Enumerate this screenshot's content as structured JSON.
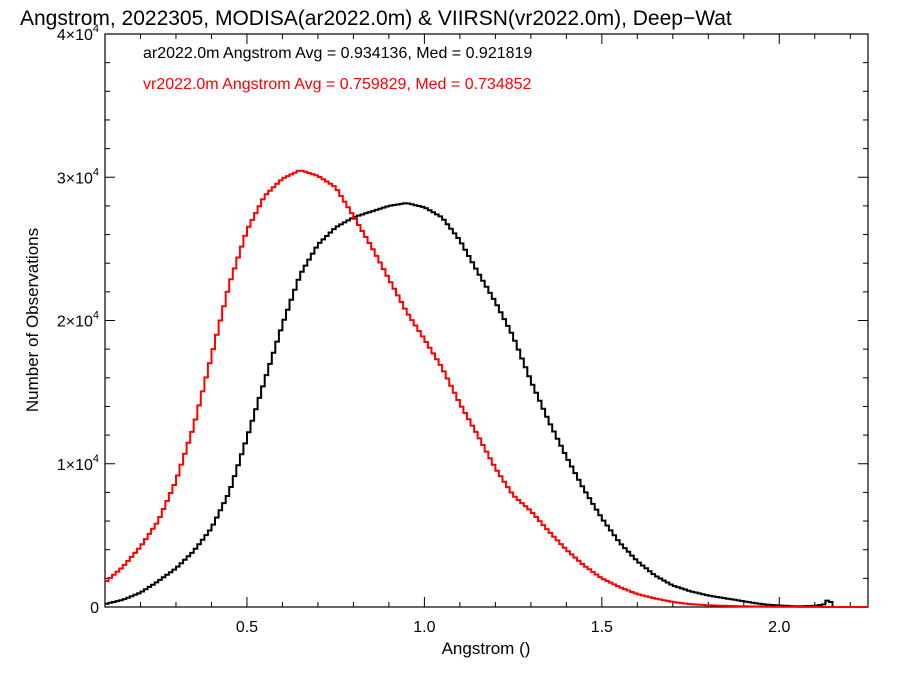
{
  "chart_data": {
    "type": "line",
    "title": "Angstrom, 2022305, MODISA(ar2022.0m) & VIIRSN(vr2022.0m), Deep−Wat",
    "xlabel": "Angstrom ()",
    "ylabel": "Number of Observations",
    "xlim": [
      0.1,
      2.25
    ],
    "ylim": [
      0,
      40000
    ],
    "x_ticks": [
      {
        "value": 0.5,
        "label": "0.5"
      },
      {
        "value": 1.0,
        "label": "1.0"
      },
      {
        "value": 1.5,
        "label": "1.5"
      },
      {
        "value": 2.0,
        "label": "2.0"
      }
    ],
    "y_ticks": [
      {
        "value": 0,
        "mantissa": "0",
        "exp": ""
      },
      {
        "value": 10000,
        "mantissa": "1×10",
        "exp": "4"
      },
      {
        "value": 20000,
        "mantissa": "2×10",
        "exp": "4"
      },
      {
        "value": 30000,
        "mantissa": "3×10",
        "exp": "4"
      },
      {
        "value": 40000,
        "mantissa": "4×10",
        "exp": "4"
      }
    ],
    "grid": false,
    "legend_position": "top-left",
    "series": [
      {
        "name": "ar2022.0m",
        "legend_text": "ar2022.0m Angstrom Avg = 0.934136, Med = 0.921819",
        "color": "#000000",
        "x": [
          0.1,
          0.15,
          0.2,
          0.25,
          0.3,
          0.35,
          0.4,
          0.45,
          0.5,
          0.55,
          0.6,
          0.65,
          0.7,
          0.75,
          0.8,
          0.85,
          0.9,
          0.95,
          1.0,
          1.05,
          1.1,
          1.15,
          1.2,
          1.25,
          1.3,
          1.35,
          1.4,
          1.45,
          1.5,
          1.55,
          1.6,
          1.65,
          1.7,
          1.75,
          1.8,
          1.85,
          1.9,
          1.95,
          2.0,
          2.05,
          2.1,
          2.13,
          2.14,
          2.15,
          2.2,
          2.25
        ],
        "y": [
          200,
          500,
          1000,
          1800,
          2700,
          3900,
          5500,
          8000,
          11800,
          15800,
          19700,
          23200,
          25300,
          26500,
          27200,
          27600,
          28000,
          28200,
          27900,
          27200,
          25600,
          23400,
          21300,
          18900,
          15800,
          13000,
          10500,
          8200,
          6200,
          4500,
          3200,
          2200,
          1500,
          1100,
          800,
          600,
          400,
          200,
          100,
          50,
          80,
          200,
          700,
          0,
          0,
          0
        ]
      },
      {
        "name": "vr2022.0m",
        "legend_text": "vr2022.0m Angstrom Avg = 0.759829, Med = 0.734852",
        "color": "#ff0000",
        "x": [
          0.1,
          0.15,
          0.2,
          0.25,
          0.3,
          0.35,
          0.4,
          0.45,
          0.5,
          0.55,
          0.6,
          0.65,
          0.7,
          0.75,
          0.8,
          0.85,
          0.9,
          0.95,
          1.0,
          1.05,
          1.1,
          1.15,
          1.2,
          1.25,
          1.3,
          1.35,
          1.4,
          1.45,
          1.5,
          1.55,
          1.6,
          1.65,
          1.7,
          1.75,
          1.8,
          1.85,
          1.9,
          1.95,
          2.0,
          2.05,
          2.1,
          2.15,
          2.2,
          2.25
        ],
        "y": [
          1700,
          2800,
          4200,
          6000,
          8800,
          12600,
          17500,
          22500,
          26300,
          28700,
          29900,
          30500,
          30100,
          29300,
          27300,
          25200,
          22900,
          20600,
          18700,
          16700,
          14200,
          12000,
          9700,
          7800,
          6700,
          5300,
          4000,
          2900,
          2000,
          1400,
          900,
          600,
          350,
          200,
          120,
          80,
          50,
          30,
          20,
          10,
          5,
          0,
          0,
          0
        ]
      }
    ]
  }
}
